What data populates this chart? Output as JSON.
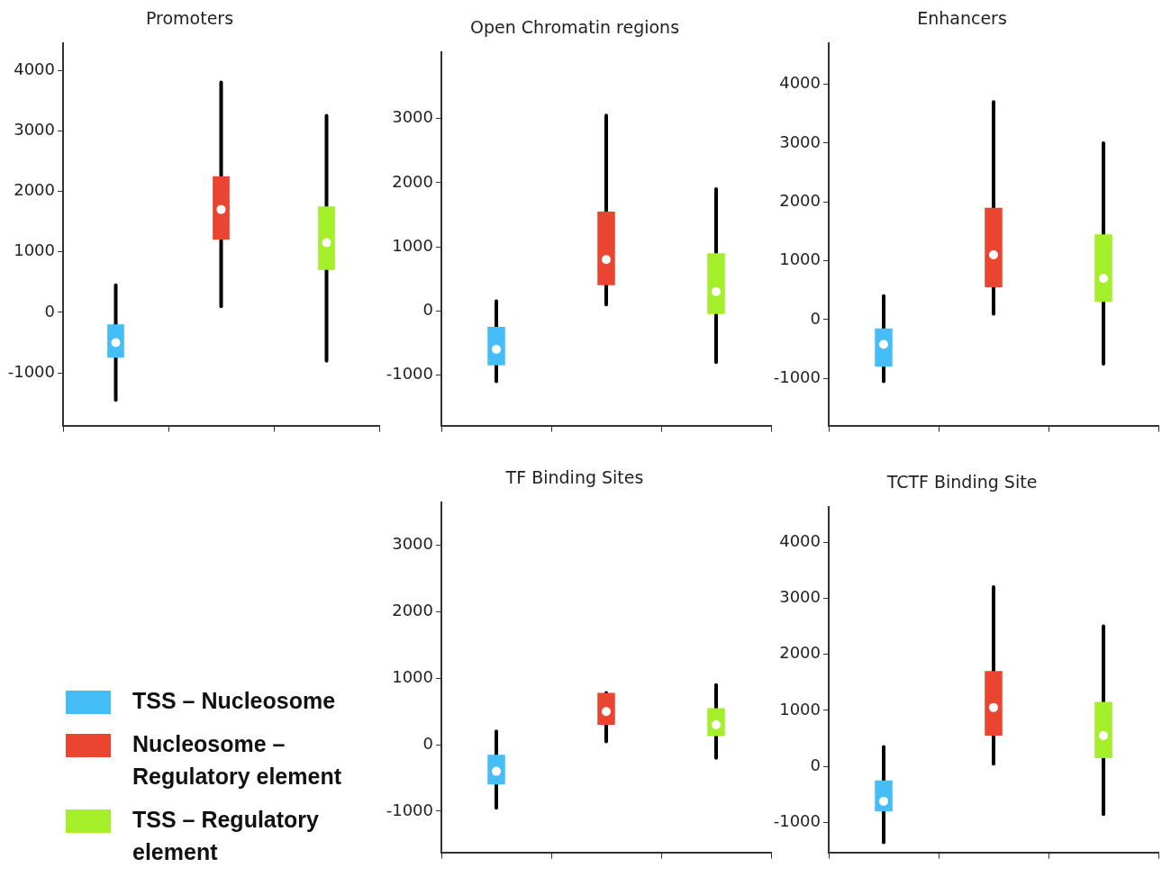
{
  "chart_data": [
    {
      "type": "box",
      "title": "Promoters",
      "categories": [
        null,
        null,
        null
      ],
      "ylim": [
        -1870,
        4450
      ],
      "yticks": [
        -1000,
        0,
        1000,
        2000,
        3000,
        4000
      ],
      "legend": "bottom left",
      "series": [
        {
          "name": "TSS – Nucleosome",
          "color": "#45bdf6",
          "boxes": [
            {
              "low": -1450,
              "q1": -750,
              "median": -500,
              "q3": -200,
              "high": 450
            },
            null,
            null
          ]
        },
        {
          "name": "Nucleosome – Regulatory element",
          "color": "#ea4530",
          "boxes": [
            null,
            {
              "low": 100,
              "q1": 1200,
              "median": 1700,
              "q3": 2250,
              "high": 3800
            },
            null
          ]
        },
        {
          "name": "TSS – Regulatory element",
          "color": "#a4ef2a",
          "boxes": [
            null,
            null,
            {
              "low": -800,
              "q1": 700,
              "median": 1150,
              "q3": 1750,
              "high": 3250
            }
          ]
        }
      ]
    },
    {
      "type": "box",
      "title": "Open Chromatin regions",
      "categories": [
        null,
        null,
        null
      ],
      "ylim": [
        -1790,
        4040
      ],
      "yticks": [
        -1000,
        0,
        1000,
        2000,
        3000
      ],
      "series": [
        {
          "color": "#45bdf6",
          "boxes": [
            {
              "low": -1100,
              "q1": -850,
              "median": -600,
              "q3": -250,
              "high": 150
            },
            null,
            null
          ]
        },
        {
          "color": "#ea4530",
          "boxes": [
            null,
            {
              "low": 100,
              "q1": 400,
              "median": 800,
              "q3": 1550,
              "high": 3050
            },
            null
          ]
        },
        {
          "color": "#a4ef2a",
          "boxes": [
            null,
            null,
            {
              "low": -800,
              "q1": -50,
              "median": 300,
              "q3": 900,
              "high": 1900
            }
          ]
        }
      ]
    },
    {
      "type": "box",
      "title": "Enhancers",
      "categories": [
        null,
        null,
        null
      ],
      "ylim": [
        -1800,
        4700
      ],
      "yticks": [
        -1000,
        0,
        1000,
        2000,
        3000,
        4000
      ],
      "series": [
        {
          "color": "#45bdf6",
          "boxes": [
            {
              "low": -1050,
              "q1": -800,
              "median": -420,
              "q3": -150,
              "high": 400
            },
            null,
            null
          ]
        },
        {
          "color": "#ea4530",
          "boxes": [
            null,
            {
              "low": 100,
              "q1": 550,
              "median": 1100,
              "q3": 1900,
              "high": 3700
            },
            null
          ]
        },
        {
          "color": "#a4ef2a",
          "boxes": [
            null,
            null,
            {
              "low": -750,
              "q1": 300,
              "median": 700,
              "q3": 1450,
              "high": 3000
            }
          ]
        }
      ]
    },
    {
      "type": "box",
      "title": "TF Binding Sites",
      "categories": [
        null,
        null,
        null
      ],
      "ylim": [
        -1620,
        3650
      ],
      "yticks": [
        -1000,
        0,
        1000,
        2000,
        3000
      ],
      "series": [
        {
          "color": "#45bdf6",
          "boxes": [
            {
              "low": -950,
              "q1": -600,
              "median": -400,
              "q3": -150,
              "high": 200
            },
            null,
            null
          ]
        },
        {
          "color": "#ea4530",
          "boxes": [
            null,
            {
              "low": 50,
              "q1": 300,
              "median": 500,
              "q3": 780,
              "high": 780
            },
            null
          ]
        },
        {
          "color": "#a4ef2a",
          "boxes": [
            null,
            null,
            {
              "low": -200,
              "q1": 130,
              "median": 300,
              "q3": 550,
              "high": 900
            }
          ]
        }
      ]
    },
    {
      "type": "box",
      "title": "TCTF Binding Site",
      "categories": [
        null,
        null,
        null
      ],
      "ylim": [
        -1530,
        4630
      ],
      "yticks": [
        -1000,
        0,
        1000,
        2000,
        3000,
        4000
      ],
      "series": [
        {
          "color": "#45bdf6",
          "boxes": [
            {
              "low": -1350,
              "q1": -800,
              "median": -620,
              "q3": -250,
              "high": 350
            },
            null,
            null
          ]
        },
        {
          "color": "#ea4530",
          "boxes": [
            null,
            {
              "low": 50,
              "q1": 550,
              "median": 1050,
              "q3": 1700,
              "high": 3200
            },
            null
          ]
        },
        {
          "color": "#a4ef2a",
          "boxes": [
            null,
            null,
            {
              "low": -850,
              "q1": 150,
              "median": 550,
              "q3": 1150,
              "high": 2500
            }
          ]
        }
      ]
    }
  ]
}
